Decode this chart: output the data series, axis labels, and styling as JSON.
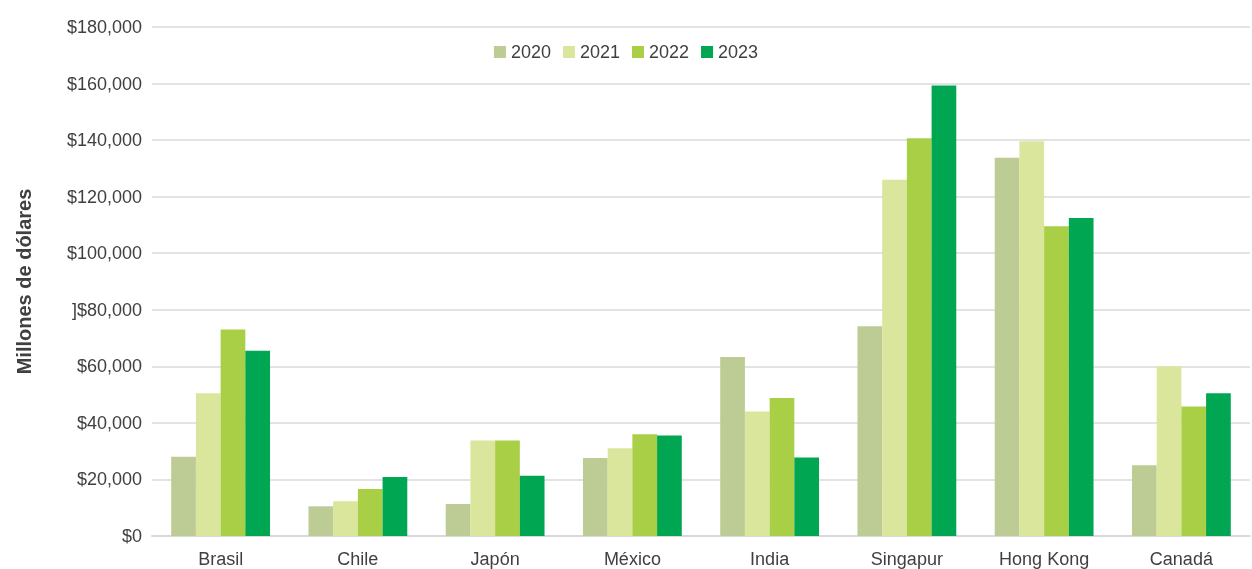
{
  "chart_data": {
    "type": "bar",
    "ylabel": "Millones de dólares",
    "categories": [
      "Brasil",
      "Chile",
      "Japón",
      "México",
      "India",
      "Singapur",
      "Hong Kong",
      "Canadá"
    ],
    "series": [
      {
        "name": "2020",
        "color": "#bdcb95",
        "values": [
          28000,
          10500,
          11300,
          27600,
          63300,
          74200,
          133800,
          25000
        ]
      },
      {
        "name": "2021",
        "color": "#d9e69c",
        "values": [
          50500,
          12300,
          33800,
          31000,
          44000,
          126000,
          139600,
          60000
        ]
      },
      {
        "name": "2022",
        "color": "#a8cf45",
        "values": [
          73000,
          16600,
          33800,
          36000,
          48800,
          140700,
          109500,
          45800
        ]
      },
      {
        "name": "2023",
        "color": "#00a651",
        "values": [
          65500,
          20900,
          21300,
          35500,
          27800,
          159300,
          112500,
          50500
        ]
      }
    ],
    "ylim": [
      0,
      180000
    ],
    "yticks": [
      {
        "value": 0,
        "label": "$0"
      },
      {
        "value": 20000,
        "label": "$20,000"
      },
      {
        "value": 40000,
        "label": "$40,000"
      },
      {
        "value": 60000,
        "label": "$60,000"
      },
      {
        "value": 80000,
        "label": "]$80,000"
      },
      {
        "value": 100000,
        "label": "$100,000"
      },
      {
        "value": 120000,
        "label": "$120,000"
      },
      {
        "value": 140000,
        "label": "$140,000"
      },
      {
        "value": 160000,
        "label": "$160,000"
      },
      {
        "value": 180000,
        "label": "$180,000"
      }
    ],
    "grid": "y",
    "legend": "top"
  }
}
